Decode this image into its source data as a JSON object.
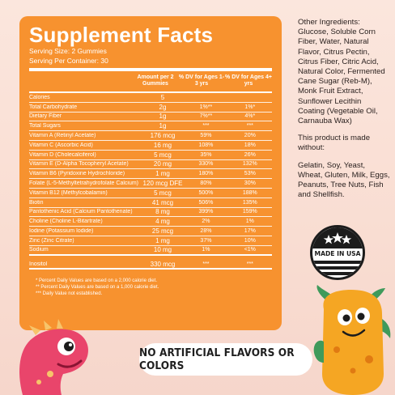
{
  "facts": {
    "title": "Supplement Facts",
    "serving_size": "Serving Size: 2 Gummies",
    "servings_per_container": "Serving Per Container: 30",
    "col_amount": "Amount per 2 Gummies",
    "col_dv_young": "% DV for Ages 1-3 yrs",
    "col_dv_old": "% DV for Ages 4+ yrs",
    "rows": [
      [
        "Calories",
        "5",
        "",
        ""
      ],
      [
        "Total Carbohydrate",
        "2g",
        "1%**",
        "1%*"
      ],
      [
        "Dietary Fiber",
        "1g",
        "7%**",
        "4%*"
      ],
      [
        "Total Sugars",
        "1g",
        "***",
        "***"
      ],
      [
        "Vitamin A (Retinyl Acetate)",
        "176 mcg",
        "59%",
        "20%"
      ],
      [
        "Vitamin C (Ascorbic Acid)",
        "16 mg",
        "108%",
        "18%"
      ],
      [
        "Vitamin D (Cholecalciferol)",
        "5 mcg",
        "35%",
        "26%"
      ],
      [
        "Vitamin E (D-Alpha Tocopheryl Acetate)",
        "20 mg",
        "330%",
        "132%"
      ],
      [
        "Vitamin B6 (Pyridoxine Hydrochloride)",
        "1 mg",
        "180%",
        "53%"
      ],
      [
        "Folate (L-5-Methyltetrahydrofolate Calcium)",
        "120 mcg DFE",
        "80%",
        "30%"
      ],
      [
        "Vitamin B12 (Methylcobalamin)",
        "5 mcg",
        "500%",
        "188%"
      ],
      [
        "Biotin",
        "41 mcg",
        "506%",
        "135%"
      ],
      [
        "Pantothenic Acid (Calcium Pantothenate)",
        "8 mg",
        "399%",
        "159%"
      ],
      [
        "Choline (Choline L-Bitartrate)",
        "4 mg",
        "2%",
        "1%"
      ],
      [
        "Iodine (Potassium Iodide)",
        "25 mcg",
        "28%",
        "17%"
      ],
      [
        "Zinc (Zinc Citrate)",
        "1 mg",
        "37%",
        "10%"
      ],
      [
        "Sodium",
        "10 mg",
        "1%",
        "<1%"
      ],
      [
        "Inositol",
        "330 mcg",
        "***",
        "***"
      ]
    ],
    "note1": "* Percent Daily Values are based on a 2,000 calorie diet.",
    "note2": "** Percent Daily Values are based on a 1,000 calorie diet.",
    "note3": "*** Daily Value not established."
  },
  "side": {
    "other_ingredients": "Other Ingredients: Glucose, Soluble Corn Fiber, Water, Natural Flavor, Citrus Pectin, Citrus Fiber, Citric Acid, Natural Color, Fermented Cane Sugar (Reb-M), Monk Fruit Extract, Sunflower Lecithin Coating (Vegetable Oil, Carnauba Wax)",
    "made_without_heading": "This product is made without:",
    "made_without_list": "Gelatin, Soy, Yeast, Wheat, Gluten, Milk, Eggs, Peanuts, Tree Nuts, Fish and Shellfish."
  },
  "badge": {
    "text": "MADE IN USA"
  },
  "banner": {
    "text": "NO ARTIFICIAL FLAVORS OR COLORS"
  },
  "colors": {
    "panel": "#f7922f",
    "background": "#fbe6dd",
    "dino_pink": "#e9456b",
    "monster_orange": "#f5a623",
    "monster_green": "#3f9a5b"
  }
}
